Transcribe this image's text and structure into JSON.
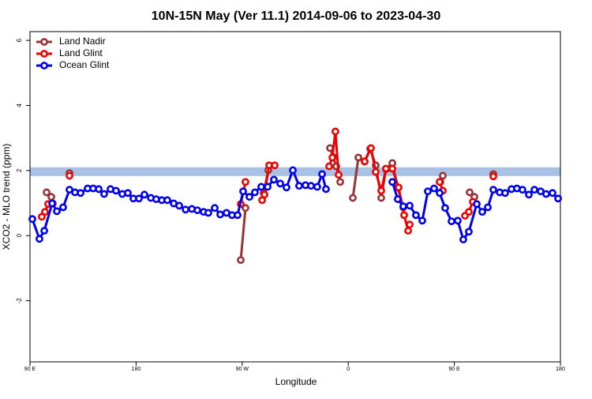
{
  "chart_data": {
    "type": "line",
    "title": "10N-15N May (Ver 11.1)   2014-09-06 to 2023-04-30",
    "x_label": "Longitude",
    "y_label": "XCO2 - MLO trend (ppm)",
    "xlim": [
      90,
      540
    ],
    "xticks": [
      {
        "value": 90,
        "label": "90 E"
      },
      180,
      {
        "value": 270,
        "label": "90 W"
      },
      {
        "value": 360,
        "label": "0"
      },
      {
        "value": 450,
        "label": "90 E"
      },
      {
        "value": 540,
        "label": "180"
      }
    ],
    "ylim": [
      -3.88,
      6.27
    ],
    "yticks": [
      -2,
      0,
      2,
      4,
      6
    ],
    "legend": "top-left",
    "band": {
      "ymin": 1.83,
      "ymax": 2.1,
      "color": "#a9c1e5"
    },
    "series": [
      {
        "name": "Land Nadir",
        "color": "#993333",
        "x": [
          104.1,
          108.1,
          109.4,
          116,
          123.5,
          200,
          268.8,
          272.8,
          280,
          288.2,
          292.2,
          320,
          344.5,
          347.1,
          349.8,
          353.2,
          358,
          363.9,
          368.6,
          373.9,
          378.6,
          383.3,
          388.0,
          392.0,
          397.4,
          402.0,
          406.7,
          420,
          438.2,
          440.2,
          450,
          463.0,
          467.0,
          475,
          483.1
        ],
        "values": [
          1.33,
          1.19,
          0.99,
          null,
          1.92,
          null,
          -0.75,
          0.85,
          null,
          1.31,
          2.01,
          null,
          2.69,
          2.42,
          2.13,
          1.65,
          null,
          1.16,
          2.4,
          2.28,
          2.67,
          2.16,
          1.16,
          2.04,
          2.23,
          1.48,
          0.87,
          null,
          1.65,
          1.84,
          null,
          1.33,
          1.19,
          null,
          1.89
        ]
      },
      {
        "name": "Land Glint",
        "color": "#ee0000",
        "x": [
          100.0,
          102.7,
          105.4,
          115,
          123.5,
          200,
          268.8,
          272.8,
          280,
          286.9,
          288.9,
          292.9,
          297.6,
          320,
          343.8,
          346.5,
          349.1,
          351.8,
          360,
          373.9,
          379.3,
          383.3,
          388.0,
          392.0,
          397.4,
          402.7,
          407.4,
          410.8,
          412.1,
          425,
          437.5,
          440.2,
          450,
          459.0,
          462.3,
          465.7,
          475,
          483.1
        ],
        "values": [
          0.58,
          0.73,
          0.97,
          null,
          1.84,
          null,
          0.97,
          1.65,
          null,
          1.09,
          1.26,
          2.16,
          2.16,
          null,
          2.13,
          2.4,
          3.2,
          1.87,
          null,
          2.28,
          2.69,
          1.96,
          1.38,
          2.06,
          2.06,
          1.48,
          0.63,
          0.15,
          0.34,
          null,
          1.65,
          1.38,
          null,
          0.61,
          0.73,
          1.04,
          null,
          1.82
        ]
      },
      {
        "name": "Ocean Glint",
        "color": "#0000ee",
        "x": [
          92.0,
          98.0,
          102.1,
          108.8,
          112.8,
          118.1,
          123.5,
          128.2,
          132.9,
          138.9,
          143.6,
          148.3,
          152.9,
          158.3,
          163.0,
          168.3,
          173.0,
          177.7,
          182.4,
          187.1,
          192.5,
          197.1,
          201.8,
          206.5,
          211.9,
          216.6,
          222.0,
          227.3,
          232.0,
          237.3,
          241.3,
          246.7,
          251.4,
          256.7,
          261.4,
          266.1,
          270.8,
          276.2,
          280.8,
          286.2,
          291.6,
          296.9,
          302.3,
          307.6,
          313.0,
          318.3,
          323.7,
          328.4,
          333.7,
          337.8,
          341.1,
          369.0,
          397.4,
          402.0,
          406.7,
          412.1,
          417.4,
          422.8,
          427.5,
          432.8,
          437.5,
          442.2,
          447.6,
          452.9,
          457.6,
          462.3,
          469.0,
          473.7,
          478.4,
          483.1,
          488.5,
          493.1,
          498.5,
          503.1,
          507.8,
          513.2,
          517.9,
          523.2,
          527.9,
          533.3,
          538.0
        ],
        "values": [
          0.51,
          -0.1,
          0.15,
          0.99,
          0.75,
          0.87,
          1.41,
          1.33,
          1.31,
          1.45,
          1.45,
          1.43,
          1.28,
          1.43,
          1.38,
          1.28,
          1.31,
          1.14,
          1.14,
          1.26,
          1.16,
          1.12,
          1.09,
          1.09,
          0.99,
          0.92,
          0.8,
          0.82,
          0.78,
          0.73,
          0.7,
          0.85,
          0.65,
          0.7,
          0.63,
          0.63,
          1.36,
          1.19,
          1.33,
          1.5,
          1.5,
          1.72,
          1.6,
          1.48,
          2.01,
          1.53,
          1.55,
          1.53,
          1.5,
          1.89,
          1.43,
          null,
          1.65,
          1.12,
          0.9,
          0.92,
          0.63,
          0.46,
          1.36,
          1.45,
          1.31,
          0.85,
          0.44,
          0.46,
          -0.12,
          0.12,
          0.97,
          0.73,
          0.87,
          1.41,
          1.33,
          1.31,
          1.43,
          1.45,
          1.41,
          1.26,
          1.41,
          1.36,
          1.28,
          1.31,
          1.14
        ]
      }
    ]
  }
}
